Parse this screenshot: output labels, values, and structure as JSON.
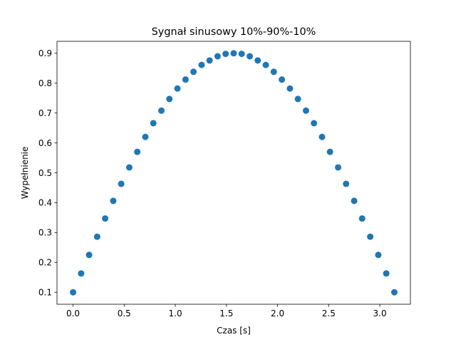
{
  "chart_data": {
    "type": "scatter",
    "title": "Sygnał sinusowy 10%-90%-10%",
    "xlabel": "Czas [s]",
    "ylabel": "Wypełnienie",
    "xlim": [
      -0.157,
      3.299
    ],
    "ylim": [
      0.06,
      0.94
    ],
    "xticks": [
      0.0,
      0.5,
      1.0,
      1.5,
      2.0,
      2.5,
      3.0
    ],
    "xtick_labels": [
      "0.0",
      "0.5",
      "1.0",
      "1.5",
      "2.0",
      "2.5",
      "3.0"
    ],
    "yticks": [
      0.1,
      0.2,
      0.3,
      0.4,
      0.5,
      0.6,
      0.7,
      0.8,
      0.9
    ],
    "ytick_labels": [
      "0.1",
      "0.2",
      "0.3",
      "0.4",
      "0.5",
      "0.6",
      "0.7",
      "0.8",
      "0.9"
    ],
    "grid": false,
    "marker_color": "#1f77b4",
    "x": [
      0.0,
      0.079,
      0.157,
      0.236,
      0.314,
      0.393,
      0.471,
      0.55,
      0.628,
      0.707,
      0.785,
      0.864,
      0.942,
      1.021,
      1.1,
      1.178,
      1.257,
      1.335,
      1.414,
      1.492,
      1.571,
      1.649,
      1.728,
      1.806,
      1.885,
      1.963,
      2.042,
      2.121,
      2.199,
      2.278,
      2.356,
      2.435,
      2.513,
      2.592,
      2.67,
      2.749,
      2.827,
      2.906,
      2.985,
      3.063,
      3.142
    ],
    "y": [
      0.1,
      0.163,
      0.225,
      0.286,
      0.347,
      0.406,
      0.463,
      0.518,
      0.57,
      0.62,
      0.666,
      0.708,
      0.747,
      0.782,
      0.812,
      0.838,
      0.861,
      0.876,
      0.89,
      0.898,
      0.9,
      0.898,
      0.89,
      0.876,
      0.861,
      0.838,
      0.812,
      0.782,
      0.747,
      0.708,
      0.666,
      0.62,
      0.57,
      0.518,
      0.463,
      0.406,
      0.347,
      0.286,
      0.225,
      0.163,
      0.1
    ]
  }
}
